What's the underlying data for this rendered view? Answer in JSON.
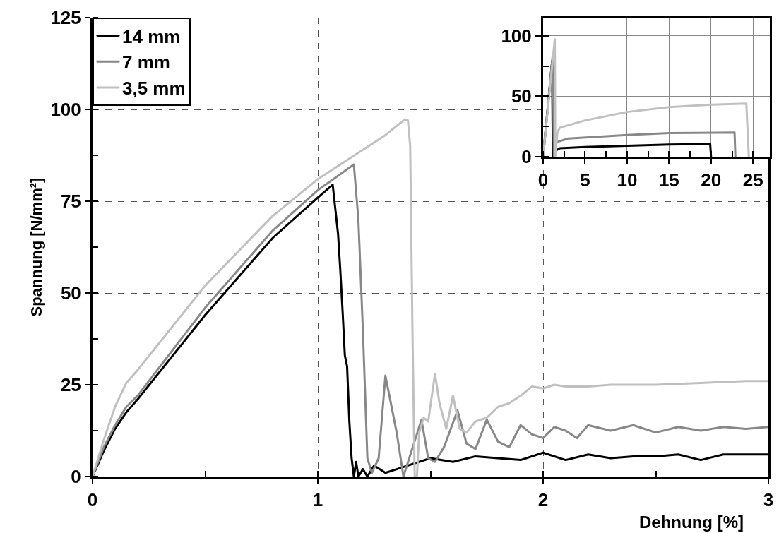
{
  "chart_data": [
    {
      "type": "line",
      "xlabel": "Dehnung [%]",
      "ylabel": "Spannung [N/mm²]",
      "xlim": [
        0,
        3
      ],
      "ylim": [
        0,
        125
      ],
      "xticks": [
        0,
        1,
        2,
        3
      ],
      "yticks": [
        0,
        25,
        50,
        75,
        100,
        125
      ],
      "grid": true,
      "legend": "top left",
      "line_style": "solid",
      "marker": "none",
      "series": [
        {
          "name": "14 mm",
          "color": "#000000",
          "x": [
            0,
            0.05,
            0.1,
            0.15,
            0.2,
            0.5,
            0.8,
            1.0,
            1.066,
            1.09,
            1.1,
            1.11,
            1.12,
            1.13,
            1.14,
            1.15,
            1.16,
            1.17,
            1.18,
            1.2,
            1.22,
            1.25,
            1.3,
            1.35,
            1.4,
            1.5,
            1.6,
            1.7,
            1.8,
            1.9,
            2.0,
            2.1,
            2.2,
            2.3,
            2.4,
            2.5,
            2.6,
            2.7,
            2.8,
            2.9,
            3.0
          ],
          "values": [
            0,
            7,
            13,
            17.5,
            21,
            44,
            65,
            76,
            79.5,
            66,
            56,
            45,
            33,
            30,
            15,
            5,
            0,
            4,
            0,
            2,
            0,
            3,
            1,
            2,
            3,
            5,
            4,
            5.5,
            5,
            4.5,
            6.5,
            4.5,
            6,
            5,
            5.5,
            5.5,
            6,
            4.5,
            6,
            6,
            6
          ]
        },
        {
          "name": "7 mm",
          "color": "#888888",
          "x": [
            0,
            0.05,
            0.1,
            0.15,
            0.2,
            0.5,
            0.8,
            1.0,
            1.16,
            1.18,
            1.2,
            1.22,
            1.24,
            1.27,
            1.3,
            1.35,
            1.38,
            1.46,
            1.49,
            1.52,
            1.56,
            1.62,
            1.66,
            1.7,
            1.75,
            1.8,
            1.85,
            1.9,
            1.95,
            2.0,
            2.05,
            2.1,
            2.15,
            2.2,
            2.3,
            2.4,
            2.5,
            2.6,
            2.7,
            2.8,
            2.9,
            3.0
          ],
          "values": [
            0,
            8,
            14,
            19,
            22,
            46,
            67,
            78,
            85,
            70,
            40,
            5,
            1,
            5,
            27.5,
            12,
            0,
            15.5,
            5,
            4,
            8,
            18,
            9,
            7.5,
            15.5,
            9.5,
            8,
            14,
            11.5,
            10.5,
            13.5,
            12.5,
            10.5,
            14,
            12.5,
            14,
            12,
            13.5,
            12.5,
            13.5,
            13,
            13.5
          ]
        },
        {
          "name": "3,5 mm",
          "color": "#c0c0c0",
          "x": [
            0,
            0.05,
            0.1,
            0.15,
            0.2,
            0.5,
            0.8,
            1.0,
            1.2,
            1.3,
            1.386,
            1.4,
            1.41,
            1.42,
            1.43,
            1.44,
            1.45,
            1.47,
            1.49,
            1.52,
            1.54,
            1.57,
            1.6,
            1.63,
            1.66,
            1.7,
            1.75,
            1.8,
            1.85,
            1.9,
            1.95,
            2.0,
            2.05,
            2.1,
            2.2,
            2.3,
            2.5,
            2.7,
            2.9,
            3.0
          ],
          "values": [
            0,
            10,
            19,
            25.5,
            29,
            52,
            71,
            81,
            89,
            93,
            97.3,
            97,
            90,
            40,
            0,
            0,
            12,
            16,
            15,
            28,
            20,
            13,
            22,
            13,
            12,
            15,
            16,
            19,
            20,
            22,
            24.5,
            24,
            25,
            24.5,
            24.5,
            25,
            25,
            25.5,
            26,
            26
          ]
        }
      ]
    },
    {
      "type": "line",
      "xlim": [
        0,
        27
      ],
      "ylim": [
        0,
        115
      ],
      "xticks": [
        0,
        5,
        10,
        15,
        20,
        25
      ],
      "yticks": [
        0,
        50,
        100
      ],
      "grid": true,
      "line_style": "solid",
      "marker": "none",
      "series": [
        {
          "color": "#000000",
          "x": [
            0,
            1.07,
            1.16,
            1.5,
            2,
            5,
            10,
            15,
            19.9,
            20
          ],
          "values": [
            0,
            79,
            0,
            5,
            7,
            8,
            9,
            10,
            10.5,
            0
          ]
        },
        {
          "color": "#888888",
          "x": [
            0,
            1.16,
            1.3,
            1.6,
            3,
            10,
            15,
            22.8,
            22.9
          ],
          "values": [
            0,
            85,
            0,
            12,
            15,
            18,
            19.5,
            20,
            0
          ]
        },
        {
          "color": "#c0c0c0",
          "x": [
            0,
            1.386,
            1.4,
            1.45,
            1.7,
            2,
            5,
            10,
            15,
            20,
            24.2,
            24.5
          ],
          "values": [
            0,
            97,
            97,
            0,
            20,
            24,
            30,
            37,
            41,
            43,
            44,
            0
          ]
        }
      ]
    }
  ]
}
